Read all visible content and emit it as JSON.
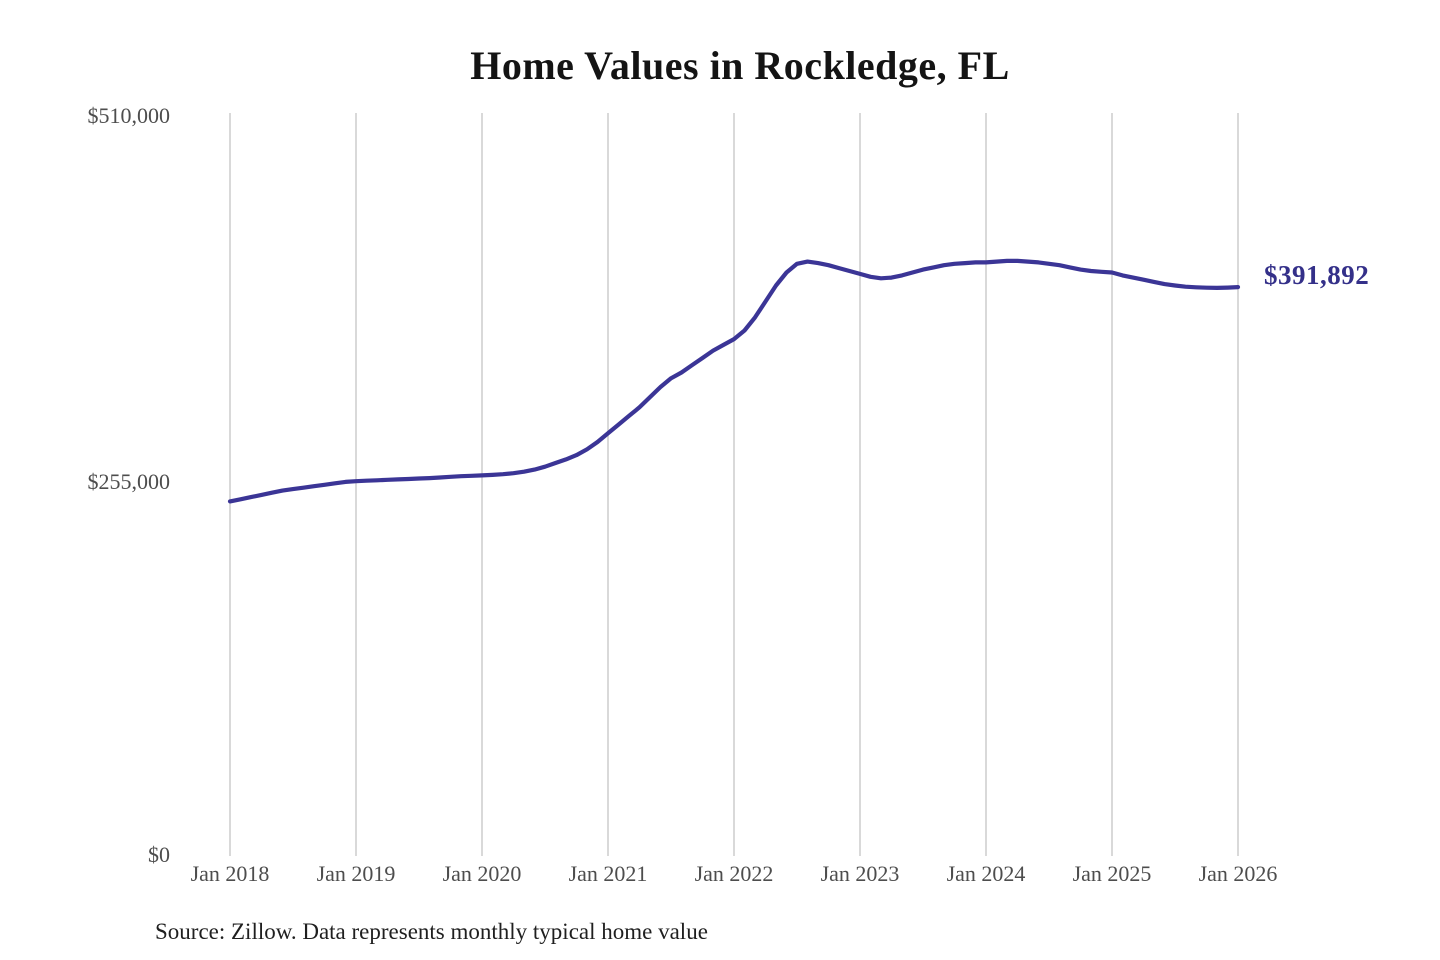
{
  "chart_data": {
    "type": "line",
    "title": "Home Values in Rockledge, FL",
    "source_note": "Source: Zillow. Data represents monthly typical home value",
    "end_label": "$391,892",
    "latest_value": 391892,
    "y_tick_labels": [
      "$0",
      "$255,000",
      "$510,000"
    ],
    "y_tick_values": [
      0,
      255000,
      510000
    ],
    "ylim": [
      0,
      510000
    ],
    "x_tick_labels": [
      "Jan 2018",
      "Jan 2019",
      "Jan 2020",
      "Jan 2021",
      "Jan 2022",
      "Jan 2023",
      "Jan 2024",
      "Jan 2025",
      "Jan 2026"
    ],
    "x_unit": "month",
    "x_range": [
      "Jan 2018",
      "Jan 2026"
    ],
    "grid": "vertical-only",
    "legend_position": "none",
    "line_color": "#3b3596",
    "grid_color": "#c9c9c9",
    "axis_label_color": "#4d4d4d",
    "title_color": "#141414",
    "series": [
      {
        "name": "Monthly typical home value",
        "values": [
          244000,
          245500,
          247000,
          248500,
          250000,
          251500,
          252500,
          253500,
          254500,
          255500,
          256500,
          257500,
          258000,
          258300,
          258600,
          258900,
          259200,
          259500,
          259800,
          260100,
          260500,
          261000,
          261400,
          261700,
          262000,
          262300,
          262800,
          263500,
          264500,
          266000,
          268000,
          270500,
          273000,
          276000,
          280000,
          285000,
          291000,
          297000,
          303000,
          309000,
          316000,
          323000,
          329000,
          333000,
          338000,
          343000,
          348000,
          352000,
          356000,
          362000,
          371000,
          382000,
          393000,
          402000,
          408000,
          409500,
          408500,
          407000,
          405000,
          403000,
          401000,
          399000,
          398000,
          398500,
          400000,
          402000,
          404000,
          405500,
          407000,
          408000,
          408500,
          409000,
          409000,
          409500,
          410000,
          410000,
          409500,
          409000,
          408000,
          407000,
          405500,
          404000,
          403000,
          402500,
          402000,
          400000,
          398500,
          397000,
          395500,
          394000,
          393000,
          392200,
          391800,
          391500,
          391400,
          391600,
          391892
        ]
      }
    ]
  }
}
